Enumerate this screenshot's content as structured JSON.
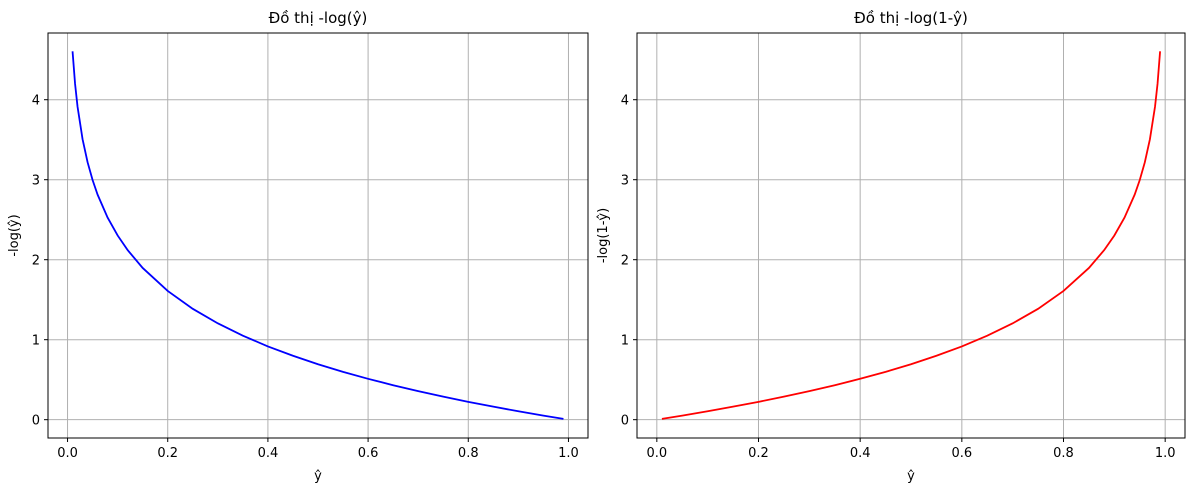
{
  "chart_data": [
    {
      "type": "line",
      "title": "Đồ thị -log(ŷ)",
      "xlabel": "ŷ",
      "ylabel": "-log(ŷ)",
      "xlim": [
        -0.039,
        1.039
      ],
      "ylim": [
        -0.229,
        4.834
      ],
      "xticks": [
        0.0,
        0.2,
        0.4,
        0.6,
        0.8,
        1.0
      ],
      "xtick_labels": [
        "0.0",
        "0.2",
        "0.4",
        "0.6",
        "0.8",
        "1.0"
      ],
      "yticks": [
        0,
        1,
        2,
        3,
        4
      ],
      "ytick_labels": [
        "0",
        "1",
        "2",
        "3",
        "4"
      ],
      "grid": true,
      "series": [
        {
          "color": "#0000ff",
          "x": [
            0.01,
            0.015,
            0.02,
            0.03,
            0.04,
            0.05,
            0.06,
            0.08,
            0.1,
            0.12,
            0.15,
            0.2,
            0.25,
            0.3,
            0.35,
            0.4,
            0.45,
            0.5,
            0.55,
            0.6,
            0.65,
            0.7,
            0.75,
            0.8,
            0.85,
            0.9,
            0.95,
            0.99
          ],
          "y": [
            4.605,
            4.2,
            3.912,
            3.507,
            3.219,
            2.996,
            2.813,
            2.526,
            2.303,
            2.12,
            1.897,
            1.609,
            1.386,
            1.204,
            1.05,
            0.916,
            0.799,
            0.693,
            0.598,
            0.511,
            0.431,
            0.357,
            0.288,
            0.223,
            0.163,
            0.105,
            0.051,
            0.01
          ]
        }
      ]
    },
    {
      "type": "line",
      "title": "Đồ thị -log(1-ŷ)",
      "xlabel": "ŷ",
      "ylabel": "-log(1-ŷ)",
      "xlim": [
        -0.039,
        1.039
      ],
      "ylim": [
        -0.229,
        4.834
      ],
      "xticks": [
        0.0,
        0.2,
        0.4,
        0.6,
        0.8,
        1.0
      ],
      "xtick_labels": [
        "0.0",
        "0.2",
        "0.4",
        "0.6",
        "0.8",
        "1.0"
      ],
      "yticks": [
        0,
        1,
        2,
        3,
        4
      ],
      "ytick_labels": [
        "0",
        "1",
        "2",
        "3",
        "4"
      ],
      "grid": true,
      "series": [
        {
          "color": "#ff0000",
          "x": [
            0.01,
            0.05,
            0.1,
            0.15,
            0.2,
            0.25,
            0.3,
            0.35,
            0.4,
            0.45,
            0.5,
            0.55,
            0.6,
            0.65,
            0.7,
            0.75,
            0.8,
            0.85,
            0.88,
            0.9,
            0.92,
            0.94,
            0.95,
            0.96,
            0.97,
            0.98,
            0.985,
            0.99
          ],
          "y": [
            0.01,
            0.051,
            0.105,
            0.163,
            0.223,
            0.288,
            0.357,
            0.431,
            0.511,
            0.598,
            0.693,
            0.799,
            0.916,
            1.05,
            1.204,
            1.386,
            1.609,
            1.897,
            2.12,
            2.303,
            2.526,
            2.813,
            2.996,
            3.219,
            3.507,
            3.912,
            4.2,
            4.605
          ]
        }
      ]
    }
  ]
}
